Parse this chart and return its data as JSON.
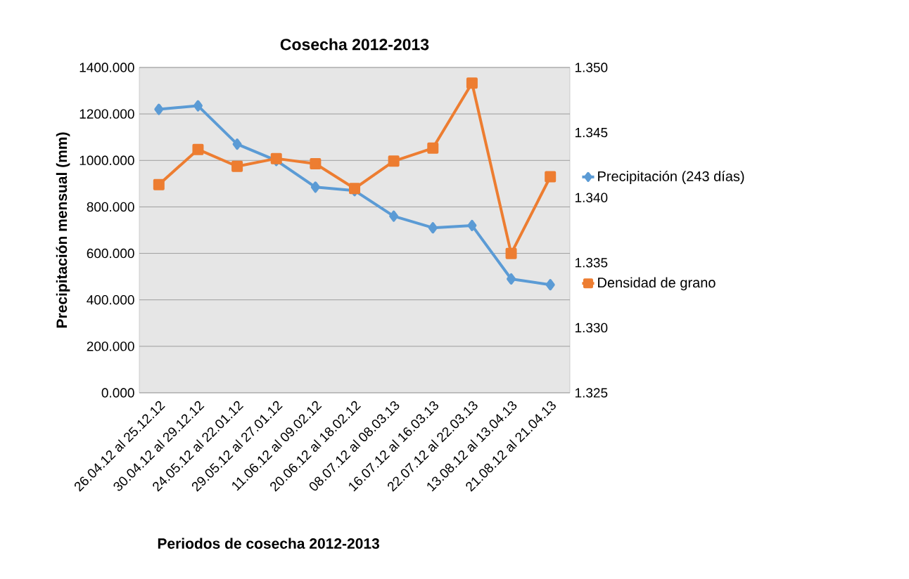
{
  "chart_data": {
    "type": "line",
    "title": "Cosecha 2012-2013",
    "xlabel": "Periodos de cosecha 2012-2013",
    "ylabel": "Precipitación mensual (mm)",
    "categories": [
      "26.04.12 al 25.12.12",
      "30.04.12 al 29.12.12",
      "24.05.12 al 22.01.12",
      "29.05.12 al 27.01.12",
      "11.06.12 al 09.02.12",
      "20.06.12 al 18.02.12",
      "08.07.12 al 08.03.13",
      "16.07.12 al 16.03.13",
      "22.07.12 al 22.03.13",
      "13.08.12 al 13.04.13",
      "21.08.12 al 21.04.13"
    ],
    "series": [
      {
        "name": "Precipitación (243 días)",
        "color": "#5b9bd5",
        "marker": "diamond",
        "values": [
          1220,
          1235,
          1070,
          1000,
          885,
          870,
          760,
          710,
          720,
          490,
          465
        ]
      },
      {
        "name": "Densidad de grano",
        "color": "#ed7d31",
        "marker": "square",
        "axis": "y2",
        "values": [
          1.341,
          1.3437,
          1.3424,
          1.343,
          1.3426,
          1.3407,
          1.3428,
          1.3438,
          1.3488,
          1.3357,
          1.3416
        ]
      }
    ],
    "ylim": [
      0,
      1400
    ],
    "yticks": [
      {
        "value": 0,
        "label": "0.000"
      },
      {
        "value": 200,
        "label": "200.000"
      },
      {
        "value": 400,
        "label": "400.000"
      },
      {
        "value": 600,
        "label": "600.000"
      },
      {
        "value": 800,
        "label": "800.000"
      },
      {
        "value": 1000,
        "label": "1000.000"
      },
      {
        "value": 1200,
        "label": "1200.000"
      },
      {
        "value": 1400,
        "label": "1400.000"
      }
    ],
    "y2lim": [
      1.325,
      1.35
    ],
    "y2ticks": [
      {
        "value": 1.325,
        "label": "1.325"
      },
      {
        "value": 1.33,
        "label": "1.330"
      },
      {
        "value": 1.335,
        "label": "1.335"
      },
      {
        "value": 1.34,
        "label": "1.340"
      },
      {
        "value": 1.345,
        "label": "1.345"
      },
      {
        "value": 1.35,
        "label": "1.350"
      }
    ],
    "grid": "y",
    "legend": "right"
  }
}
